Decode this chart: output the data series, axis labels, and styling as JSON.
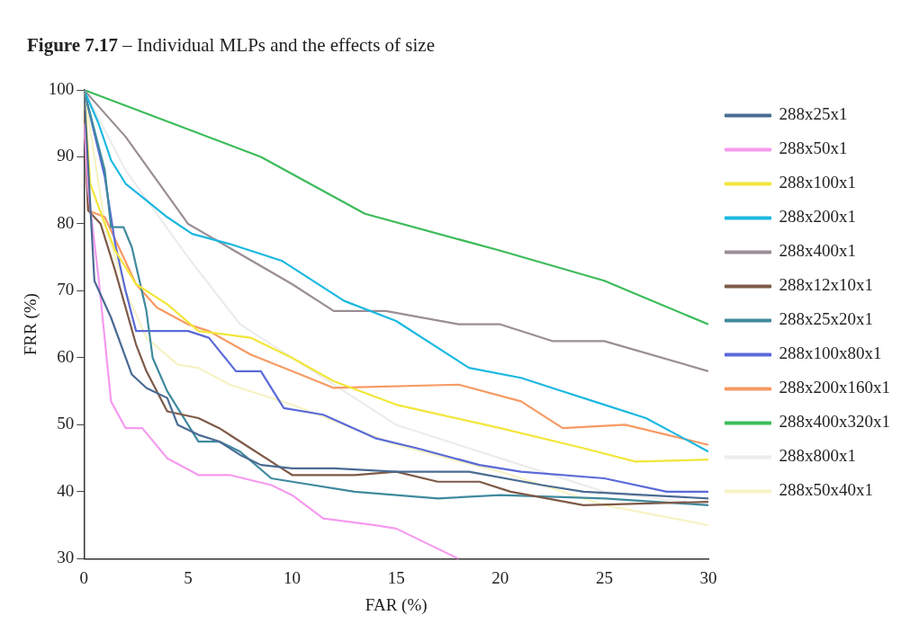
{
  "chart_data": {
    "type": "line",
    "title": "Figure 7.17 – Individual MLPs and the effects of size",
    "xlabel": "FAR (%)",
    "ylabel": "FRR (%)",
    "xlim": [
      0,
      30
    ],
    "xticks": [
      0,
      5,
      10,
      15,
      20,
      25,
      30
    ],
    "ylim": [
      30,
      100
    ],
    "yticks": [
      30,
      40,
      50,
      60,
      70,
      80,
      90,
      100
    ],
    "grid": false,
    "legend": "right",
    "marker": "none",
    "line_style": "solid",
    "series": [
      {
        "name": "288x25x1",
        "color": "#4a6b93",
        "x": [
          0,
          0.5,
          1.3,
          2.3,
          3,
          4,
          4.5,
          5.5,
          6.5,
          7.5,
          8.5,
          10,
          12,
          15,
          18.5,
          22,
          24,
          30
        ],
        "values": [
          100,
          71.5,
          66,
          57.5,
          55.5,
          54,
          50,
          48.5,
          47.5,
          45.5,
          44,
          43.5,
          43.5,
          43,
          43,
          41,
          40,
          39
        ]
      },
      {
        "name": "288x50x1",
        "color": "#f59bef",
        "x": [
          0,
          0.2,
          0.7,
          1.3,
          2,
          2.8,
          4,
          5.5,
          7,
          9,
          10,
          11.5,
          14,
          15,
          18
        ],
        "values": [
          95,
          85,
          72,
          53.5,
          49.5,
          49.5,
          45,
          42.5,
          42.5,
          41,
          39.5,
          36,
          35,
          34.5,
          30
        ]
      },
      {
        "name": "288x100x1",
        "color": "#f2e63a",
        "x": [
          0,
          0.3,
          1,
          1.5,
          2.5,
          4,
          5.5,
          8,
          10,
          12,
          15,
          20,
          24,
          26.5,
          30
        ],
        "values": [
          100,
          86,
          80,
          76,
          71,
          68,
          64,
          63,
          60,
          56.5,
          53,
          49.5,
          46.5,
          44.5,
          44.8
        ]
      },
      {
        "name": "288x200x1",
        "color": "#1bb8e0",
        "x": [
          0,
          0.7,
          1.3,
          2,
          3,
          4,
          5.2,
          7,
          9.5,
          12.5,
          15,
          18.5,
          21,
          23,
          25,
          27,
          30
        ],
        "values": [
          100,
          95,
          89.5,
          86,
          83.5,
          81,
          78.5,
          77,
          74.5,
          68.5,
          65.5,
          58.5,
          57,
          55,
          53,
          51,
          46
        ]
      },
      {
        "name": "288x400x1",
        "color": "#9a8e96",
        "x": [
          0,
          2,
          5,
          10,
          12,
          14.5,
          18,
          20,
          22.5,
          25,
          30
        ],
        "values": [
          100,
          93,
          80,
          71,
          67,
          67,
          65,
          65,
          62.5,
          62.5,
          58
        ]
      },
      {
        "name": "288x12x10x1",
        "color": "#7e5a48",
        "x": [
          0,
          0.2,
          0.8,
          1.5,
          2.5,
          3,
          4,
          5.5,
          6.5,
          8,
          9.5,
          10,
          13,
          15,
          17,
          19,
          20.5,
          24,
          30
        ],
        "values": [
          97,
          82,
          80,
          73,
          62,
          58,
          52,
          51,
          49.5,
          46.5,
          43.5,
          42.5,
          42.5,
          43,
          41.5,
          41.5,
          40,
          38,
          38.5
        ]
      },
      {
        "name": "288x25x20x1",
        "color": "#3f8a9e",
        "x": [
          0,
          1,
          1.3,
          1.9,
          2.3,
          3,
          3.3,
          4,
          5,
          5.5,
          6.5,
          7.5,
          9,
          10,
          13,
          17,
          20,
          25,
          30
        ],
        "values": [
          100,
          88,
          79.5,
          79.5,
          76.5,
          67,
          60,
          55,
          50,
          47.5,
          47.5,
          46,
          42,
          41.5,
          40,
          39,
          39.5,
          39,
          38
        ]
      },
      {
        "name": "288x100x80x1",
        "color": "#5a6ad8",
        "x": [
          0,
          1,
          1.5,
          2,
          2.5,
          5,
          6,
          7.3,
          8.5,
          9.6,
          11.5,
          14,
          16,
          19,
          21,
          25,
          28,
          30
        ],
        "values": [
          100,
          87,
          77,
          70,
          64,
          64,
          63,
          58,
          58,
          52.5,
          51.5,
          48,
          46.5,
          44,
          43,
          42,
          40,
          40
        ]
      },
      {
        "name": "288x200x160x1",
        "color": "#f79a64",
        "x": [
          0,
          0.2,
          1,
          1.6,
          2.5,
          3.5,
          5,
          6,
          8,
          10,
          12,
          18,
          21,
          23,
          26,
          30
        ],
        "values": [
          98,
          82,
          81,
          77,
          71,
          67.5,
          65,
          64,
          60.5,
          58,
          55.5,
          56,
          53.5,
          49.5,
          50,
          47
        ]
      },
      {
        "name": "288x400x320x1",
        "color": "#3cbb5a",
        "x": [
          0,
          8.5,
          13.5,
          20,
          25,
          30
        ],
        "values": [
          100,
          90,
          81.5,
          76,
          71.5,
          65
        ]
      },
      {
        "name": "288x800x1",
        "color": "#ececec",
        "x": [
          0,
          2,
          5,
          7.5,
          10,
          15,
          20,
          25,
          30
        ],
        "values": [
          100,
          88,
          75,
          65,
          60,
          50,
          45,
          40,
          38
        ]
      },
      {
        "name": "288x50x40x1",
        "color": "#f6f3c4",
        "x": [
          0,
          1,
          2,
          3,
          4.5,
          5.5,
          7,
          10,
          15,
          20,
          25,
          30
        ],
        "values": [
          100,
          80,
          70,
          63,
          59,
          58.5,
          56,
          53,
          47,
          43,
          38,
          35
        ]
      }
    ]
  }
}
